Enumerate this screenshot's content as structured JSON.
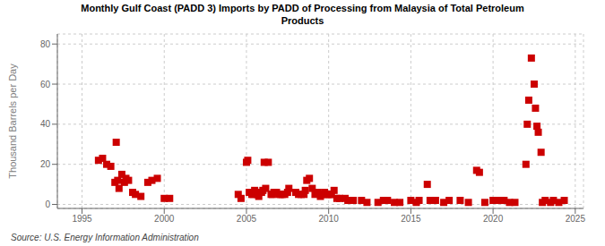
{
  "chart_data": {
    "type": "scatter",
    "title": "Monthly Gulf Coast (PADD 3) Imports by PADD of Processing from Malaysia of Total Petroleum\nProducts",
    "ylabel": "Thousand Barrels per Day",
    "annotations": [
      "Source: U.S. Energy Information Administration"
    ],
    "color": "#cc0000",
    "marker": "square",
    "grid": true,
    "xlim": [
      1993.5,
      2025.5
    ],
    "ylim": [
      -2,
      85
    ],
    "xticks": [
      1995,
      2000,
      2005,
      2010,
      2015,
      2020,
      2025
    ],
    "yticks": [
      0,
      20,
      40,
      60,
      80
    ],
    "x": [
      1996.0,
      1996.25,
      1996.5,
      1996.75,
      1997.0,
      1997.08,
      1997.17,
      1997.25,
      1997.42,
      1997.58,
      1997.67,
      1997.83,
      1998.08,
      1998.25,
      1998.58,
      1999.0,
      1999.25,
      1999.58,
      2000.0,
      2000.33,
      2004.5,
      2004.67,
      2005.0,
      2005.08,
      2005.17,
      2005.33,
      2005.42,
      2005.5,
      2005.58,
      2005.67,
      2005.75,
      2005.92,
      2006.0,
      2006.08,
      2006.17,
      2006.33,
      2006.5,
      2006.58,
      2006.67,
      2006.83,
      2007.0,
      2007.08,
      2007.17,
      2007.33,
      2007.5,
      2007.58,
      2008.0,
      2008.17,
      2008.33,
      2008.5,
      2008.58,
      2008.67,
      2008.83,
      2009.0,
      2009.17,
      2009.33,
      2009.5,
      2009.58,
      2009.67,
      2009.75,
      2009.92,
      2010.0,
      2010.08,
      2010.17,
      2010.33,
      2010.5,
      2010.67,
      2011.0,
      2011.17,
      2011.5,
      2012.0,
      2012.33,
      2013.0,
      2013.33,
      2013.58,
      2014.0,
      2014.33,
      2015.0,
      2015.33,
      2015.5,
      2016.0,
      2016.17,
      2016.5,
      2017.0,
      2017.33,
      2018.0,
      2018.5,
      2019.0,
      2019.17,
      2019.5,
      2020.0,
      2020.33,
      2020.5,
      2020.67,
      2021.0,
      2021.33,
      2022.0,
      2022.08,
      2022.17,
      2022.33,
      2022.5,
      2022.58,
      2022.67,
      2022.75,
      2022.92,
      2023.0,
      2023.17,
      2023.5,
      2023.67,
      2024.0,
      2024.33
    ],
    "values": [
      22.0,
      23.0,
      20.0,
      19.0,
      11.0,
      31.0,
      12.0,
      8.0,
      15.0,
      11.0,
      13.0,
      12.0,
      6.0,
      5.0,
      4.0,
      11.0,
      12.0,
      13.0,
      3.0,
      3.0,
      5.0,
      3.0,
      21.0,
      22.0,
      6.0,
      5.0,
      5.0,
      7.0,
      6.0,
      5.0,
      4.0,
      6.0,
      7.0,
      21.0,
      8.0,
      21.0,
      5.0,
      5.0,
      6.0,
      6.0,
      5.0,
      5.0,
      5.0,
      5.0,
      6.0,
      8.0,
      6.0,
      5.0,
      5.0,
      5.0,
      7.0,
      12.0,
      13.0,
      8.0,
      5.0,
      6.0,
      4.0,
      5.0,
      5.0,
      6.0,
      5.0,
      5.0,
      5.0,
      5.0,
      7.0,
      3.0,
      3.0,
      3.0,
      2.0,
      2.0,
      2.0,
      1.0,
      1.0,
      2.0,
      2.0,
      1.0,
      1.0,
      2.0,
      1.0,
      2.0,
      10.0,
      2.0,
      2.0,
      1.0,
      2.0,
      2.0,
      1.0,
      17.0,
      16.0,
      1.0,
      2.0,
      2.0,
      2.0,
      2.0,
      1.0,
      1.0,
      20.0,
      40.0,
      52.0,
      73.0,
      60.0,
      48.0,
      39.0,
      36.0,
      26.0,
      1.0,
      2.0,
      1.0,
      2.0,
      1.0,
      2.0
    ]
  }
}
